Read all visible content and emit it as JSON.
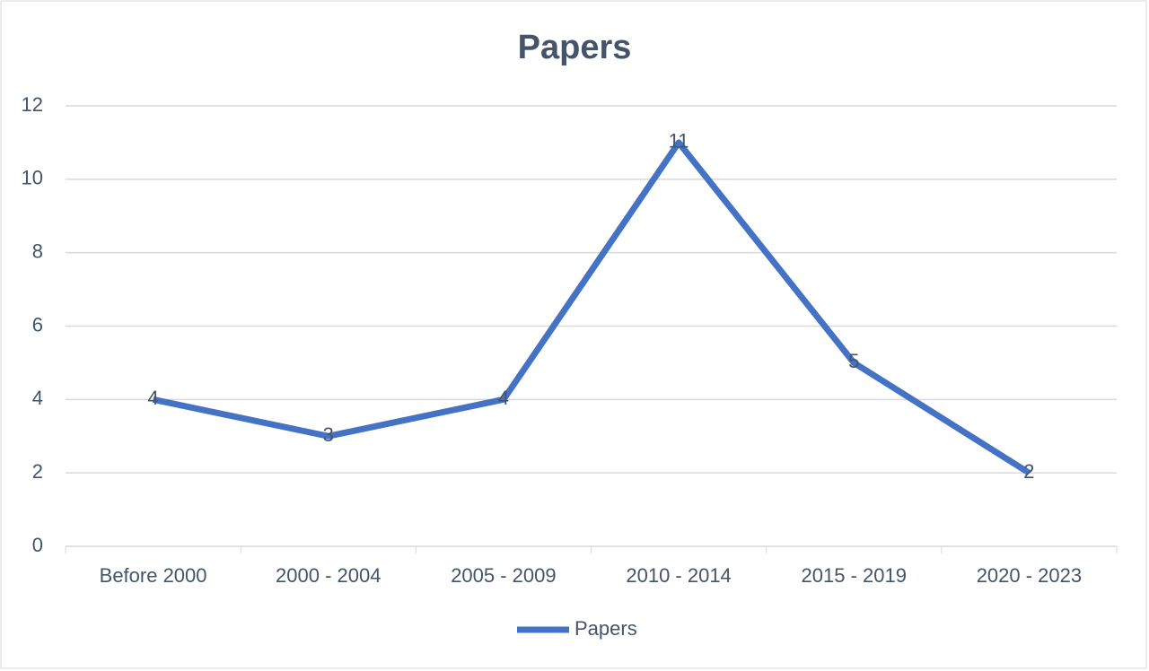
{
  "chart_data": {
    "type": "line",
    "title": "Papers",
    "categories": [
      "Before 2000",
      "2000 - 2004",
      "2005 - 2009",
      "2010 - 2014",
      "2015 - 2019",
      "2020 - 2023"
    ],
    "series": [
      {
        "name": "Papers",
        "color": "#4472c4",
        "values": [
          4,
          3,
          4,
          11,
          5,
          2
        ]
      }
    ],
    "ylim": [
      0,
      12
    ],
    "yticks": [
      0,
      2,
      4,
      6,
      8,
      10,
      12
    ],
    "grid": true,
    "legend": "bottom",
    "data_labels": true
  }
}
